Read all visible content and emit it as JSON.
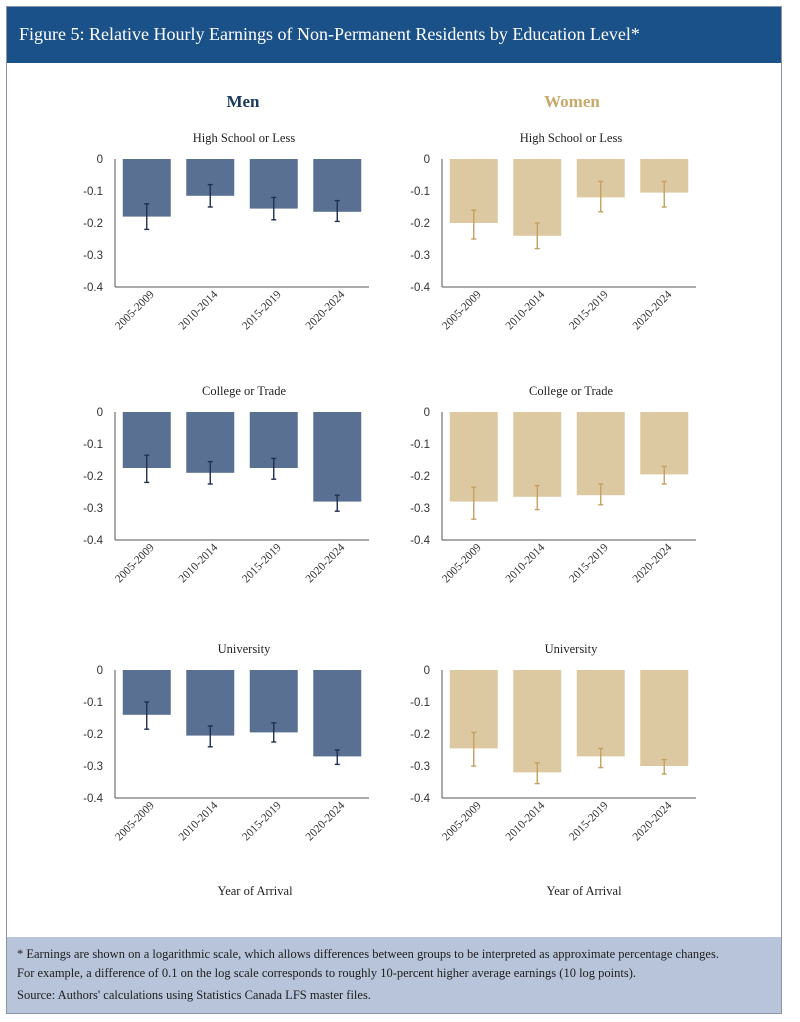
{
  "header": {
    "title": "Figure 5: Relative Hourly Earnings of Non-Permanent Residents by Education Level*"
  },
  "footer": {
    "note_line1": "* Earnings are shown on a logarithmic scale, which allows differences between groups to be interpreted as approximate percentage changes.",
    "note_line2": "For example, a difference of 0.1 on the log scale corresponds to roughly 10-percent higher average earnings (10 log points).",
    "source": "Source: Authors' calculations using Statistics Canada LFS master files."
  },
  "columns": [
    {
      "title": "Men",
      "color": "#5a7092",
      "title_color": "#1a3a60",
      "error_color": "#1f2f4f"
    },
    {
      "title": "Women",
      "color": "#dcc9a1",
      "title_color": "#c9a96a",
      "error_color": "#c6a060"
    }
  ],
  "xlabel": "Year of Arrival",
  "colors": {
    "header_bg": "#1a5189",
    "footer_bg": "#b7c4d9",
    "axis": "#555555"
  },
  "chart_data": [
    {
      "type": "bar",
      "title": "High School or Less",
      "group": "Men",
      "categories": [
        "2005-2009",
        "2010-2014",
        "2015-2019",
        "2020-2024"
      ],
      "values": [
        -0.18,
        -0.115,
        -0.155,
        -0.165
      ],
      "error_low": [
        -0.22,
        -0.15,
        -0.19,
        -0.195
      ],
      "error_high": [
        -0.14,
        -0.08,
        -0.12,
        -0.13
      ],
      "ylim": [
        -0.4,
        0
      ],
      "yticks": [
        "0",
        "-0.1",
        "-0.2",
        "-0.3",
        "-0.4"
      ],
      "grid": false
    },
    {
      "type": "bar",
      "title": "High School or Less",
      "group": "Women",
      "categories": [
        "2005-2009",
        "2010-2014",
        "2015-2019",
        "2020-2024"
      ],
      "values": [
        -0.2,
        -0.24,
        -0.12,
        -0.105
      ],
      "error_low": [
        -0.25,
        -0.28,
        -0.165,
        -0.15
      ],
      "error_high": [
        -0.16,
        -0.2,
        -0.07,
        -0.07
      ],
      "ylim": [
        -0.4,
        0
      ],
      "yticks": [
        "0",
        "-0.1",
        "-0.2",
        "-0.3",
        "-0.4"
      ],
      "grid": false
    },
    {
      "type": "bar",
      "title": "College or Trade",
      "group": "Men",
      "categories": [
        "2005-2009",
        "2010-2014",
        "2015-2019",
        "2020-2024"
      ],
      "values": [
        -0.175,
        -0.19,
        -0.175,
        -0.28
      ],
      "error_low": [
        -0.22,
        -0.225,
        -0.21,
        -0.31
      ],
      "error_high": [
        -0.135,
        -0.155,
        -0.145,
        -0.26
      ],
      "ylim": [
        -0.4,
        0
      ],
      "yticks": [
        "0",
        "-0.1",
        "-0.2",
        "-0.3",
        "-0.4"
      ],
      "grid": false
    },
    {
      "type": "bar",
      "title": "College or Trade",
      "group": "Women",
      "categories": [
        "2005-2009",
        "2010-2014",
        "2015-2019",
        "2020-2024"
      ],
      "values": [
        -0.28,
        -0.265,
        -0.26,
        -0.195
      ],
      "error_low": [
        -0.335,
        -0.305,
        -0.29,
        -0.225
      ],
      "error_high": [
        -0.235,
        -0.23,
        -0.225,
        -0.17
      ],
      "ylim": [
        -0.4,
        0
      ],
      "yticks": [
        "0",
        "-0.1",
        "-0.2",
        "-0.3",
        "-0.4"
      ],
      "grid": false
    },
    {
      "type": "bar",
      "title": "University",
      "group": "Men",
      "categories": [
        "2005-2009",
        "2010-2014",
        "2015-2019",
        "2020-2024"
      ],
      "values": [
        -0.14,
        -0.205,
        -0.195,
        -0.27
      ],
      "error_low": [
        -0.185,
        -0.24,
        -0.225,
        -0.295
      ],
      "error_high": [
        -0.1,
        -0.175,
        -0.165,
        -0.25
      ],
      "ylim": [
        -0.4,
        0
      ],
      "yticks": [
        "0",
        "-0.1",
        "-0.2",
        "-0.3",
        "-0.4"
      ],
      "grid": false
    },
    {
      "type": "bar",
      "title": "University",
      "group": "Women",
      "categories": [
        "2005-2009",
        "2010-2014",
        "2015-2019",
        "2020-2024"
      ],
      "values": [
        -0.245,
        -0.32,
        -0.27,
        -0.3
      ],
      "error_low": [
        -0.3,
        -0.355,
        -0.305,
        -0.325
      ],
      "error_high": [
        -0.195,
        -0.29,
        -0.245,
        -0.28
      ],
      "ylim": [
        -0.4,
        0
      ],
      "yticks": [
        "0",
        "-0.1",
        "-0.2",
        "-0.3",
        "-0.4"
      ],
      "grid": false
    }
  ]
}
